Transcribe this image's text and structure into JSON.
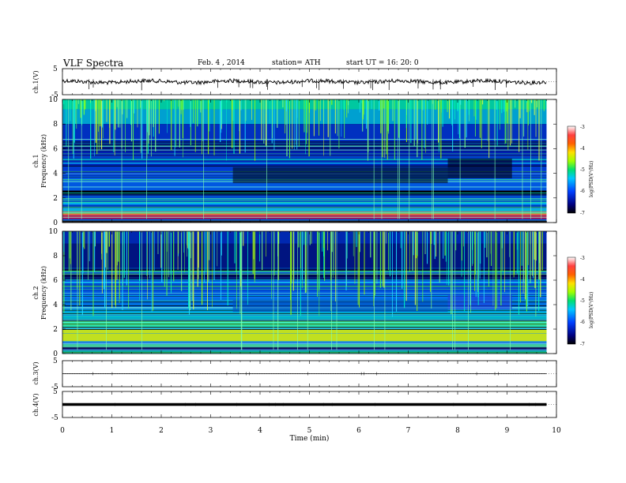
{
  "header": {
    "title": "VLF Spectra",
    "date": "Feb. 4  , 2014",
    "station": "station= ATH",
    "start": "start  UT =   16: 20: 0"
  },
  "colorbar": {
    "label": "log(PSD(V²/Hz)",
    "ticks": [
      "-3",
      "-4",
      "-5",
      "-6",
      "-7"
    ]
  },
  "chart_data": [
    {
      "type": "line",
      "panel": "ch1-waveform",
      "ylabel": "ch.1(V)",
      "ylim": [
        -5,
        5
      ],
      "yticks": [
        "5",
        "-5"
      ],
      "xlim": [
        0,
        10
      ],
      "series": [
        {
          "x": [
            0,
            9.8
          ],
          "y": [
            0,
            0
          ]
        }
      ]
    },
    {
      "type": "heatmap",
      "panel": "ch1-spectrogram",
      "ylabel": "ch.1\nFrequency  (kHz)",
      "ylim": [
        0,
        10
      ],
      "yticks": [
        "0",
        "2",
        "4",
        "6",
        "8",
        "10"
      ],
      "xlim": [
        0,
        10
      ],
      "zlim": [
        -7,
        -3
      ]
    },
    {
      "type": "heatmap",
      "panel": "ch2-spectrogram",
      "ylabel": "ch.2\nFrequency  (kHz)",
      "ylim": [
        0,
        10
      ],
      "yticks": [
        "0",
        "2",
        "4",
        "6",
        "8",
        "10"
      ],
      "xlim": [
        0,
        10
      ],
      "zlim": [
        -7,
        -3
      ]
    },
    {
      "type": "line",
      "panel": "ch3-waveform",
      "ylabel": "ch.3(V)",
      "ylim": [
        -5,
        5
      ],
      "yticks": [
        "5",
        "-5"
      ],
      "xlim": [
        0,
        10
      ],
      "series": [
        {
          "x": [
            0,
            9.8
          ],
          "y": [
            0,
            0
          ]
        }
      ]
    },
    {
      "type": "line",
      "panel": "ch4-waveform",
      "ylabel": "ch.4(V)",
      "ylim": [
        -5,
        5
      ],
      "yticks": [
        "5",
        "-5"
      ],
      "xlim": [
        0,
        10
      ],
      "xlabel": "Time  (min)",
      "xticks": [
        "0",
        "1",
        "2",
        "3",
        "4",
        "5",
        "6",
        "7",
        "8",
        "9",
        "10"
      ],
      "series": [
        {
          "x": [
            0,
            9.8
          ],
          "y": [
            0,
            0
          ]
        }
      ]
    }
  ]
}
